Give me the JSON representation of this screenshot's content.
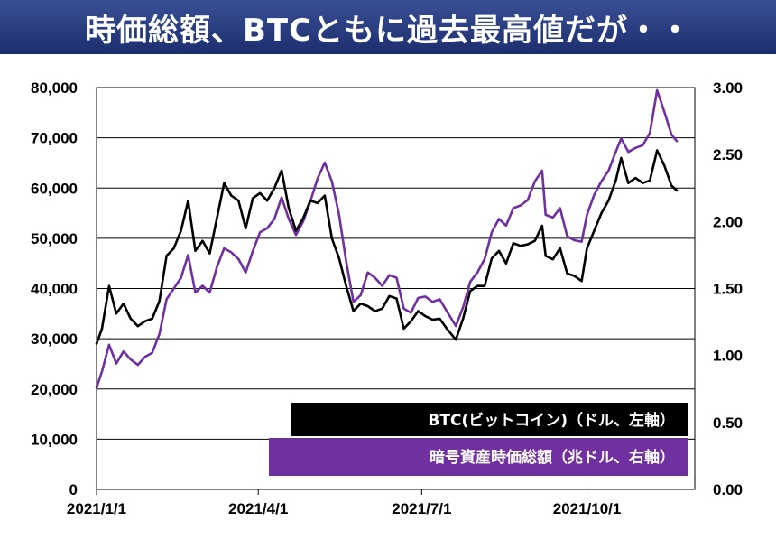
{
  "title": "時価総額、BTCともに過去最高値だが・・",
  "chart_data": {
    "type": "line",
    "title": "時価総額、BTCともに過去最高値だが・・",
    "x_ticks": [
      "2021/1/1",
      "2021/4/1",
      "2021/7/1",
      "2021/10/1"
    ],
    "x_range": [
      "2021-01-01",
      "2021-11-30"
    ],
    "y_left": {
      "ticks": [
        "0",
        "10,000",
        "20,000",
        "30,000",
        "40,000",
        "50,000",
        "60,000",
        "70,000",
        "80,000"
      ],
      "range": [
        0,
        80000
      ]
    },
    "y_right": {
      "ticks": [
        "0.00",
        "0.50",
        "1.00",
        "1.50",
        "2.00",
        "2.50",
        "3.00"
      ],
      "range": [
        0,
        3
      ]
    },
    "grid": true,
    "legend_position": "bottom-right",
    "series": [
      {
        "name": "BTC(ビットコイン)（ドル、左軸）",
        "axis": "left",
        "color": "#000000",
        "points": [
          [
            "2021-01-01",
            29000
          ],
          [
            "2021-01-04",
            32000
          ],
          [
            "2021-01-08",
            40500
          ],
          [
            "2021-01-12",
            35000
          ],
          [
            "2021-01-16",
            37000
          ],
          [
            "2021-01-20",
            34000
          ],
          [
            "2021-01-24",
            32500
          ],
          [
            "2021-01-28",
            33500
          ],
          [
            "2021-02-01",
            34000
          ],
          [
            "2021-02-05",
            37500
          ],
          [
            "2021-02-09",
            46500
          ],
          [
            "2021-02-13",
            48000
          ],
          [
            "2021-02-17",
            51500
          ],
          [
            "2021-02-21",
            57500
          ],
          [
            "2021-02-25",
            47500
          ],
          [
            "2021-03-01",
            49500
          ],
          [
            "2021-03-05",
            47000
          ],
          [
            "2021-03-09",
            54000
          ],
          [
            "2021-03-13",
            61000
          ],
          [
            "2021-03-17",
            58500
          ],
          [
            "2021-03-21",
            57500
          ],
          [
            "2021-03-25",
            52000
          ],
          [
            "2021-03-29",
            58000
          ],
          [
            "2021-04-02",
            59000
          ],
          [
            "2021-04-06",
            57500
          ],
          [
            "2021-04-10",
            60000
          ],
          [
            "2021-04-14",
            63500
          ],
          [
            "2021-04-18",
            56000
          ],
          [
            "2021-04-22",
            51500
          ],
          [
            "2021-04-26",
            54000
          ],
          [
            "2021-04-30",
            57500
          ],
          [
            "2021-05-04",
            57000
          ],
          [
            "2021-05-08",
            58500
          ],
          [
            "2021-05-12",
            50000
          ],
          [
            "2021-05-16",
            46000
          ],
          [
            "2021-05-20",
            40500
          ],
          [
            "2021-05-24",
            35500
          ],
          [
            "2021-05-28",
            37000
          ],
          [
            "2021-06-01",
            36500
          ],
          [
            "2021-06-05",
            35500
          ],
          [
            "2021-06-09",
            36000
          ],
          [
            "2021-06-13",
            38500
          ],
          [
            "2021-06-17",
            38000
          ],
          [
            "2021-06-21",
            32000
          ],
          [
            "2021-06-25",
            33500
          ],
          [
            "2021-06-29",
            35500
          ],
          [
            "2021-07-03",
            34500
          ],
          [
            "2021-07-07",
            33800
          ],
          [
            "2021-07-11",
            34000
          ],
          [
            "2021-07-15",
            32000
          ],
          [
            "2021-07-20",
            29800
          ],
          [
            "2021-07-24",
            34000
          ],
          [
            "2021-07-28",
            39500
          ],
          [
            "2021-08-01",
            40500
          ],
          [
            "2021-08-05",
            40500
          ],
          [
            "2021-08-09",
            46000
          ],
          [
            "2021-08-13",
            47500
          ],
          [
            "2021-08-17",
            45000
          ],
          [
            "2021-08-21",
            49000
          ],
          [
            "2021-08-25",
            48500
          ],
          [
            "2021-08-29",
            48800
          ],
          [
            "2021-09-02",
            49500
          ],
          [
            "2021-09-06",
            52500
          ],
          [
            "2021-09-08",
            46500
          ],
          [
            "2021-09-12",
            45800
          ],
          [
            "2021-09-16",
            48000
          ],
          [
            "2021-09-20",
            43000
          ],
          [
            "2021-09-24",
            42500
          ],
          [
            "2021-09-28",
            41500
          ],
          [
            "2021-10-01",
            48000
          ],
          [
            "2021-10-05",
            51500
          ],
          [
            "2021-10-09",
            55000
          ],
          [
            "2021-10-13",
            57500
          ],
          [
            "2021-10-17",
            61500
          ],
          [
            "2021-10-20",
            66000
          ],
          [
            "2021-10-24",
            61000
          ],
          [
            "2021-10-28",
            62000
          ],
          [
            "2021-11-01",
            61000
          ],
          [
            "2021-11-05",
            61500
          ],
          [
            "2021-11-09",
            67500
          ],
          [
            "2021-11-13",
            64500
          ],
          [
            "2021-11-17",
            60500
          ],
          [
            "2021-11-20",
            59500
          ]
        ]
      },
      {
        "name": "暗号資産時価総額（兆ドル、右軸）",
        "axis": "right",
        "color": "#7030a0",
        "points": [
          [
            "2021-01-01",
            0.76
          ],
          [
            "2021-01-04",
            0.88
          ],
          [
            "2021-01-08",
            1.08
          ],
          [
            "2021-01-12",
            0.94
          ],
          [
            "2021-01-16",
            1.03
          ],
          [
            "2021-01-20",
            0.97
          ],
          [
            "2021-01-24",
            0.93
          ],
          [
            "2021-01-28",
            0.99
          ],
          [
            "2021-02-01",
            1.02
          ],
          [
            "2021-02-05",
            1.16
          ],
          [
            "2021-02-09",
            1.42
          ],
          [
            "2021-02-13",
            1.5
          ],
          [
            "2021-02-17",
            1.58
          ],
          [
            "2021-02-21",
            1.75
          ],
          [
            "2021-02-25",
            1.47
          ],
          [
            "2021-03-01",
            1.52
          ],
          [
            "2021-03-05",
            1.47
          ],
          [
            "2021-03-09",
            1.66
          ],
          [
            "2021-03-13",
            1.8
          ],
          [
            "2021-03-17",
            1.77
          ],
          [
            "2021-03-21",
            1.72
          ],
          [
            "2021-03-25",
            1.62
          ],
          [
            "2021-03-29",
            1.78
          ],
          [
            "2021-04-02",
            1.92
          ],
          [
            "2021-04-06",
            1.95
          ],
          [
            "2021-04-10",
            2.02
          ],
          [
            "2021-04-14",
            2.18
          ],
          [
            "2021-04-18",
            2.02
          ],
          [
            "2021-04-22",
            1.9
          ],
          [
            "2021-04-26",
            2.0
          ],
          [
            "2021-04-30",
            2.15
          ],
          [
            "2021-05-04",
            2.32
          ],
          [
            "2021-05-08",
            2.44
          ],
          [
            "2021-05-12",
            2.3
          ],
          [
            "2021-05-16",
            2.05
          ],
          [
            "2021-05-20",
            1.7
          ],
          [
            "2021-05-24",
            1.4
          ],
          [
            "2021-05-28",
            1.45
          ],
          [
            "2021-06-01",
            1.62
          ],
          [
            "2021-06-05",
            1.58
          ],
          [
            "2021-06-09",
            1.52
          ],
          [
            "2021-06-13",
            1.6
          ],
          [
            "2021-06-17",
            1.58
          ],
          [
            "2021-06-21",
            1.35
          ],
          [
            "2021-06-25",
            1.32
          ],
          [
            "2021-06-29",
            1.43
          ],
          [
            "2021-07-03",
            1.44
          ],
          [
            "2021-07-07",
            1.4
          ],
          [
            "2021-07-11",
            1.42
          ],
          [
            "2021-07-15",
            1.33
          ],
          [
            "2021-07-20",
            1.22
          ],
          [
            "2021-07-24",
            1.36
          ],
          [
            "2021-07-28",
            1.55
          ],
          [
            "2021-08-01",
            1.62
          ],
          [
            "2021-08-05",
            1.72
          ],
          [
            "2021-08-09",
            1.92
          ],
          [
            "2021-08-13",
            2.02
          ],
          [
            "2021-08-17",
            1.97
          ],
          [
            "2021-08-21",
            2.1
          ],
          [
            "2021-08-25",
            2.12
          ],
          [
            "2021-08-29",
            2.16
          ],
          [
            "2021-09-02",
            2.3
          ],
          [
            "2021-09-06",
            2.38
          ],
          [
            "2021-09-08",
            2.05
          ],
          [
            "2021-09-12",
            2.03
          ],
          [
            "2021-09-16",
            2.1
          ],
          [
            "2021-09-20",
            1.89
          ],
          [
            "2021-09-24",
            1.86
          ],
          [
            "2021-09-28",
            1.85
          ],
          [
            "2021-10-01",
            2.05
          ],
          [
            "2021-10-05",
            2.2
          ],
          [
            "2021-10-09",
            2.3
          ],
          [
            "2021-10-13",
            2.38
          ],
          [
            "2021-10-17",
            2.52
          ],
          [
            "2021-10-20",
            2.62
          ],
          [
            "2021-10-24",
            2.52
          ],
          [
            "2021-10-28",
            2.55
          ],
          [
            "2021-11-01",
            2.57
          ],
          [
            "2021-11-05",
            2.66
          ],
          [
            "2021-11-09",
            2.98
          ],
          [
            "2021-11-13",
            2.82
          ],
          [
            "2021-11-17",
            2.65
          ],
          [
            "2021-11-20",
            2.6
          ]
        ]
      }
    ]
  }
}
